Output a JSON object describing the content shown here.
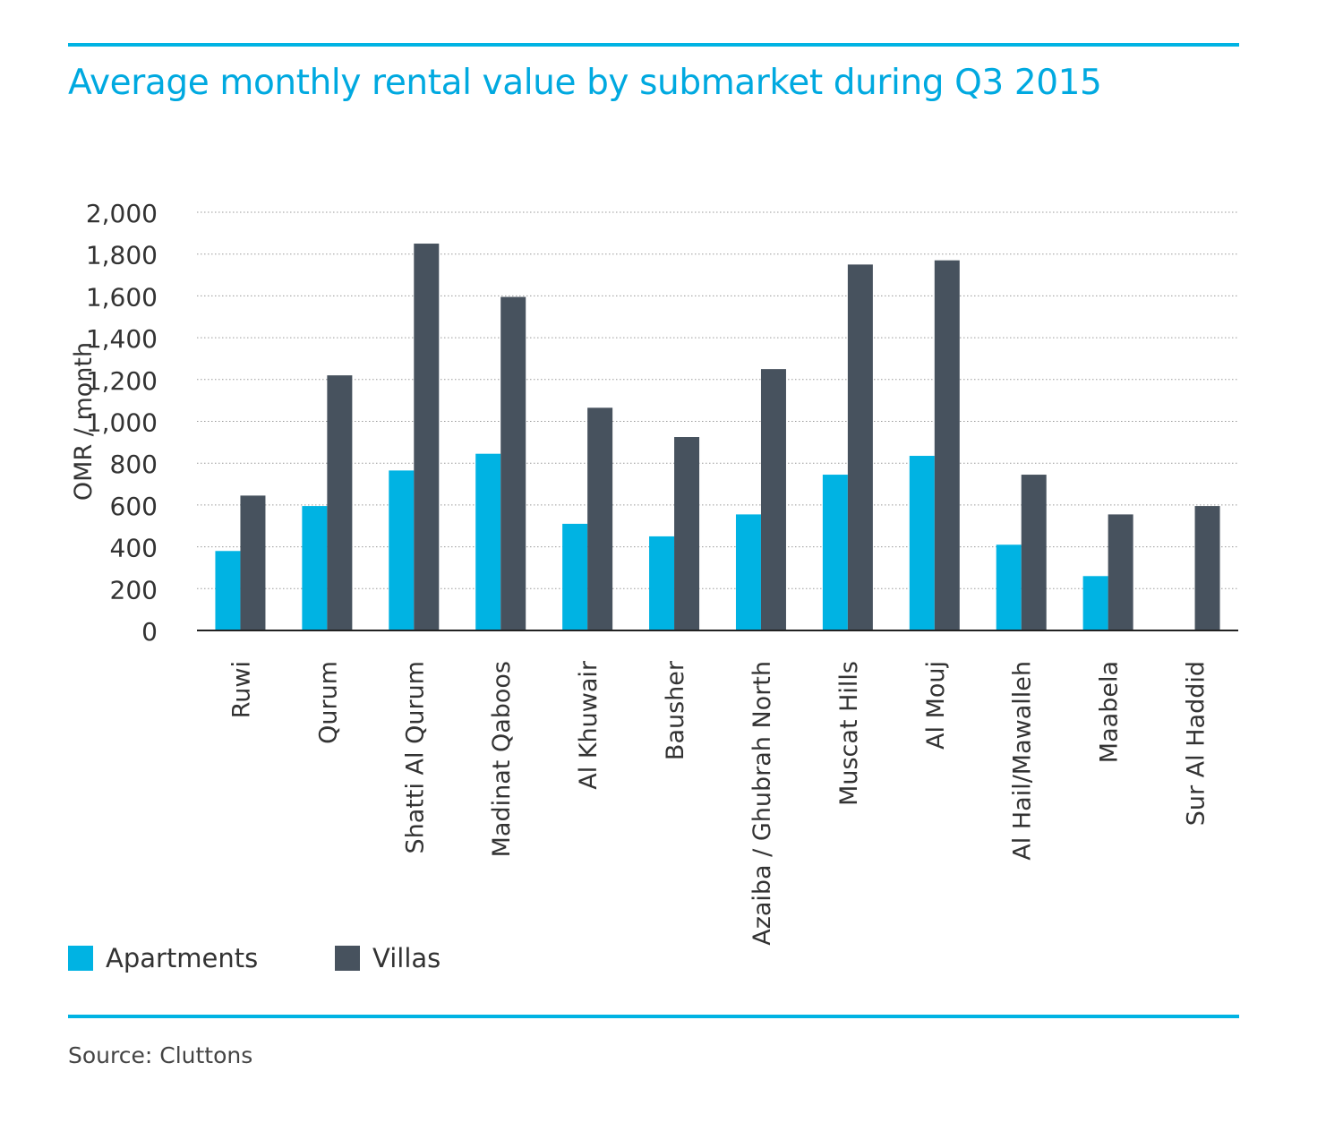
{
  "title": "Average monthly rental value by submarket during Q3 2015",
  "source": "Source: Cluttons",
  "colors": {
    "accent": "#00b3e3",
    "apartments": "#00b3e3",
    "villas": "#47525e"
  },
  "chart_data": {
    "type": "bar",
    "title": "Average monthly rental value by submarket during Q3 2015",
    "ylabel": "OMR / month",
    "xlabel": "",
    "ylim": [
      0,
      2000
    ],
    "yticks": [
      0,
      200,
      400,
      600,
      800,
      1000,
      1200,
      1400,
      1600,
      1800,
      2000
    ],
    "ytick_labels": [
      "0",
      "200",
      "400",
      "600",
      "800",
      "1,000",
      "1,200",
      "1,400",
      "1,600",
      "1,800",
      "2,000"
    ],
    "grid": true,
    "legend_position": "bottom-left",
    "categories": [
      "Ruwi",
      "Qurum",
      "Shatti Al Qurum",
      "Madinat Qaboos",
      "Al Khuwair",
      "Bausher",
      "Azaiba / Ghubrah North",
      "Muscat Hills",
      "Al Mouj",
      "Al Hail/Mawalleh",
      "Maabela",
      "Sur Al Haddid"
    ],
    "series": [
      {
        "name": "Apartments",
        "color": "#00b3e3",
        "values": [
          380,
          595,
          765,
          845,
          510,
          450,
          555,
          745,
          835,
          410,
          260,
          null
        ]
      },
      {
        "name": "Villas",
        "color": "#47525e",
        "values": [
          645,
          1220,
          1850,
          1595,
          1065,
          925,
          1250,
          1750,
          1770,
          745,
          555,
          595
        ]
      }
    ]
  }
}
